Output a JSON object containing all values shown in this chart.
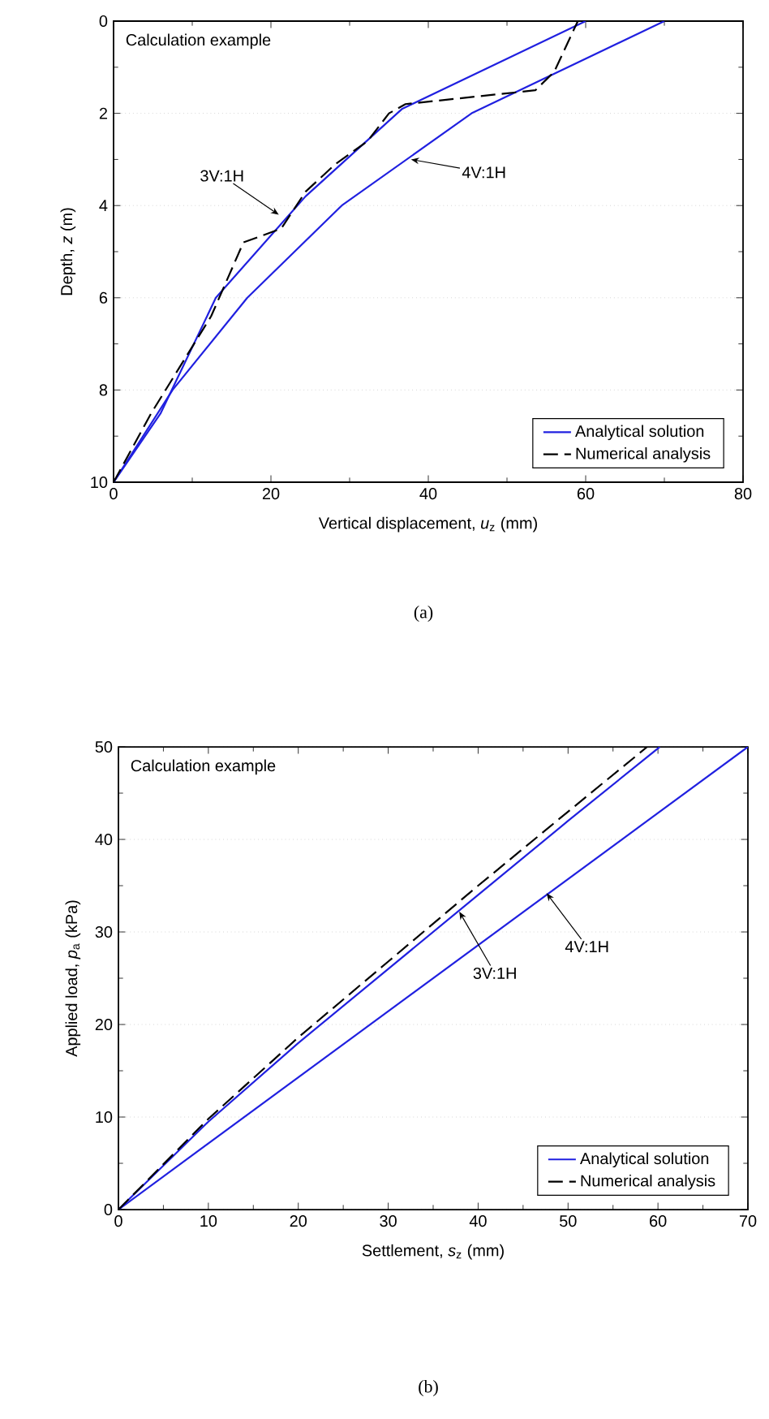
{
  "chart_data": [
    {
      "type": "line",
      "title": "(a)",
      "xlabel": "Vertical displacement, *u*$_{z}$ (mm)",
      "ylabel": "Depth, *z* (m)",
      "xlim": [
        0,
        80
      ],
      "xticks": [
        0,
        20,
        40,
        60,
        80
      ],
      "ylim": [
        10,
        0
      ],
      "yticks": [
        0,
        2,
        4,
        6,
        8,
        10
      ],
      "grid": "y",
      "legend": "bottom right",
      "series": [
        {
          "name": "Analytical solution",
          "color": "#2020e0",
          "line_style": "solid",
          "x": [
            0,
            6,
            13,
            24.4,
            36.7,
            60
          ],
          "values": [
            10,
            8.5,
            6.0,
            3.8,
            1.9,
            0
          ]
        },
        {
          "color": "#2020e0",
          "line_style": "solid",
          "x": [
            0,
            7.5,
            17,
            29,
            45.5,
            70
          ],
          "values": [
            10,
            8,
            6,
            4,
            2,
            0
          ]
        },
        {
          "name": "Numerical analysis",
          "color": "#000000",
          "line_style": "dashed",
          "x": [
            0,
            4.8,
            12.4,
            16.5,
            21.3,
            24.4,
            28.2,
            32.3,
            35,
            37.1,
            53.6,
            56,
            59
          ],
          "values": [
            10,
            8.5,
            6.4,
            4.8,
            4.5,
            3.7,
            3.1,
            2.6,
            2.0,
            1.8,
            1.5,
            1.1,
            0
          ]
        }
      ],
      "annotations": [
        "Calculation example",
        {
          "text": "3V:1H",
          "x": 21,
          "y": 4.2
        },
        {
          "text": "4V:1H",
          "x": 37.8,
          "y": 3.0
        }
      ]
    },
    {
      "type": "line",
      "title": "(b)",
      "xlabel": "Settlement, *s*$_{z}$ (mm)",
      "ylabel": "Applied load, *p*$_{a}$ (kPa)",
      "xlim": [
        0,
        70
      ],
      "xticks": [
        0,
        10,
        20,
        30,
        40,
        50,
        60,
        70
      ],
      "ylim": [
        0,
        50
      ],
      "yticks": [
        0,
        10,
        20,
        30,
        40,
        50
      ],
      "grid": "y",
      "legend": "bottom right",
      "series": [
        {
          "name": "Analytical solution",
          "color": "#2020e0",
          "line_style": "solid",
          "x": [
            0,
            10,
            20,
            30,
            40,
            50,
            60.2
          ],
          "values": [
            0,
            9.5,
            18,
            26,
            34,
            42,
            50
          ]
        },
        {
          "color": "#2020e0",
          "line_style": "solid",
          "x": [
            0,
            70
          ],
          "values": [
            0,
            50
          ]
        },
        {
          "name": "Numerical analysis",
          "color": "#000000",
          "line_style": "dashed",
          "x": [
            0,
            10,
            20,
            30,
            40,
            50,
            58.8
          ],
          "values": [
            0,
            9.8,
            18.6,
            26.8,
            35,
            43,
            50
          ]
        }
      ],
      "annotations": [
        "Calculation example",
        {
          "text": "3V:1H",
          "x": 37.9,
          "y": 32.2
        },
        {
          "text": "4V:1H",
          "x": 47.6,
          "y": 34.2
        }
      ]
    }
  ]
}
